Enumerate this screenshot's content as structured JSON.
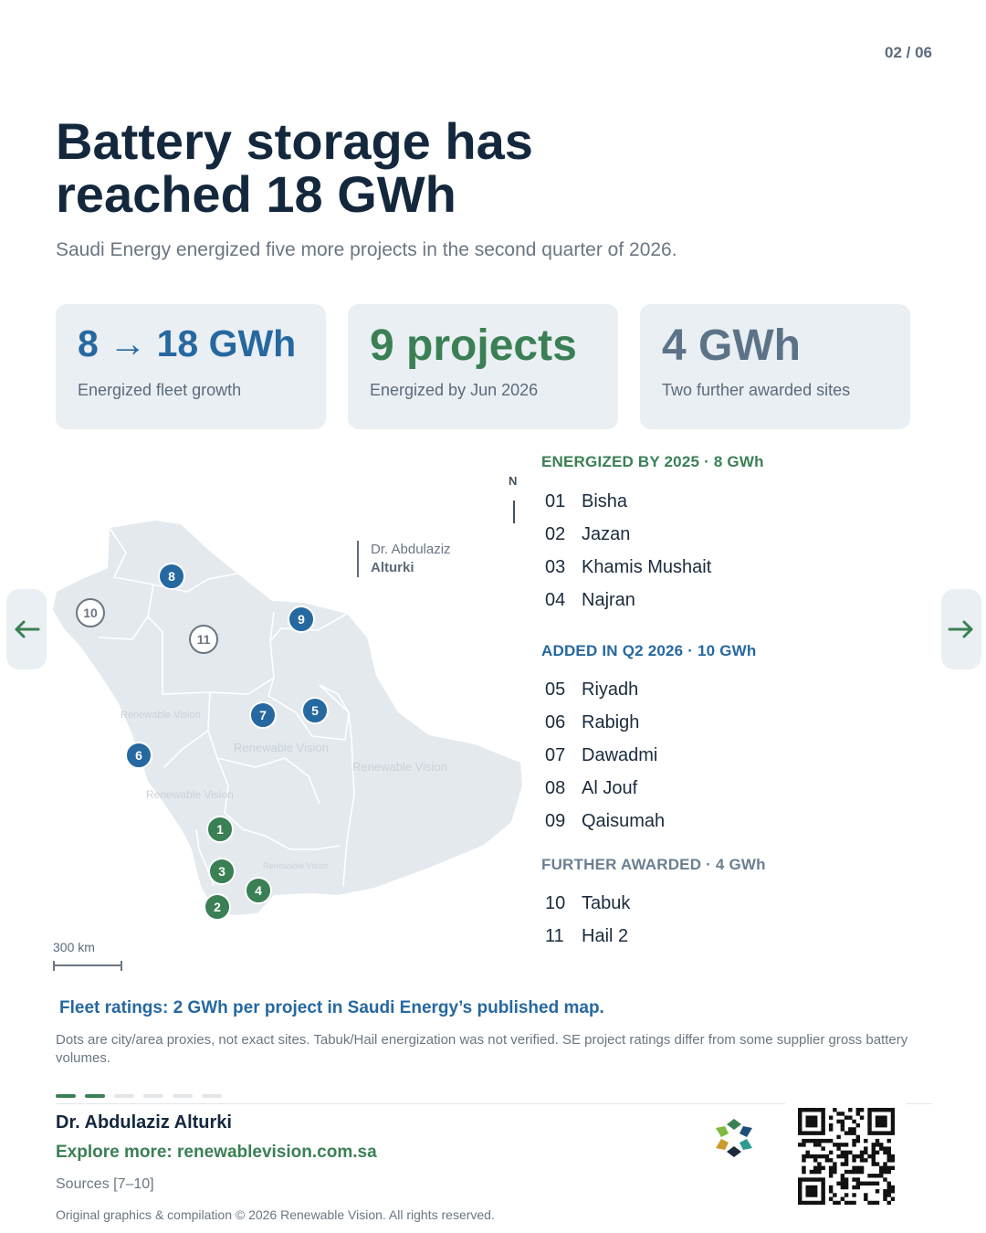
{
  "page_indicator": "02 / 06",
  "title": [
    "Battery storage has",
    "reached 18 GWh"
  ],
  "subtitle": "Saudi Energy energized five more projects in the second quarter of 2026.",
  "stats": [
    {
      "value": "8 → 18 GWh",
      "label": "Energized fleet growth"
    },
    {
      "value": "9 projects",
      "label": "Energized by Jun 2026"
    },
    {
      "value": "4 GWh",
      "label": "Two further awarded sites"
    }
  ],
  "map": {
    "north_label": "N",
    "credit_line1": "Dr. Abdulaziz",
    "credit_line2": "Alturki",
    "watermark": "Renewable Vision",
    "scale_label": "300 km",
    "markers": [
      {
        "id": "1",
        "status": "energized_2025"
      },
      {
        "id": "2",
        "status": "energized_2025"
      },
      {
        "id": "3",
        "status": "energized_2025"
      },
      {
        "id": "4",
        "status": "energized_2025"
      },
      {
        "id": "5",
        "status": "added_q2_2026"
      },
      {
        "id": "6",
        "status": "added_q2_2026"
      },
      {
        "id": "7",
        "status": "added_q2_2026"
      },
      {
        "id": "8",
        "status": "added_q2_2026"
      },
      {
        "id": "9",
        "status": "added_q2_2026"
      },
      {
        "id": "10",
        "status": "further_awarded"
      },
      {
        "id": "11",
        "status": "further_awarded"
      }
    ]
  },
  "groups": [
    {
      "heading": "ENERGIZED BY 2025 · 8 GWh",
      "items": [
        {
          "num": "01",
          "name": "Bisha"
        },
        {
          "num": "02",
          "name": "Jazan"
        },
        {
          "num": "03",
          "name": "Khamis Mushait"
        },
        {
          "num": "04",
          "name": "Najran"
        }
      ]
    },
    {
      "heading": "ADDED IN Q2 2026 · 10 GWh",
      "items": [
        {
          "num": "05",
          "name": "Riyadh"
        },
        {
          "num": "06",
          "name": "Rabigh"
        },
        {
          "num": "07",
          "name": "Dawadmi"
        },
        {
          "num": "08",
          "name": "Al Jouf"
        },
        {
          "num": "09",
          "name": "Qaisumah"
        }
      ]
    },
    {
      "heading": "FURTHER AWARDED · 4 GWh",
      "items": [
        {
          "num": "10",
          "name": "Tabuk"
        },
        {
          "num": "11",
          "name": "Hail 2"
        }
      ]
    }
  ],
  "note": {
    "heading": "Fleet ratings: 2 GWh per project in Saudi Energy’s published map.",
    "body": "Dots are city/area proxies, not exact sites. Tabuk/Hail energization was not verified. SE project ratings differ from some supplier gross battery volumes."
  },
  "footer": {
    "author": "Dr. Abdulaziz Alturki",
    "explore": "Explore more: renewablevision.com.sa",
    "sources": "Sources [7–10]",
    "copyright": "Original graphics & compilation © 2026 Renewable Vision. All rights reserved."
  },
  "progress": {
    "current": 2,
    "total": 6
  },
  "colors": {
    "energized": "#3a8054",
    "added": "#2668a0",
    "awarded": "#6b7f92",
    "title": "#14283d",
    "card_bg": "#eaeff3",
    "map_fill": "#e4e9ee"
  },
  "icons": {
    "prev": "arrow-left-icon",
    "next": "arrow-right-icon"
  }
}
